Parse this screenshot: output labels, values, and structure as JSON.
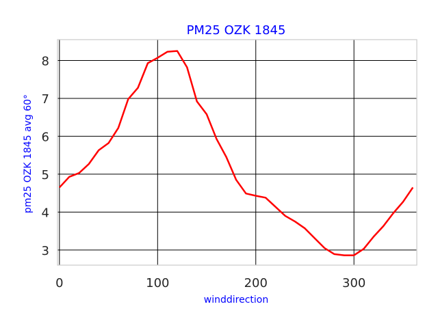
{
  "chart_data": {
    "type": "line",
    "title": "PM25 OZK 1845",
    "xlabel": "winddirection",
    "ylabel": "pm25 OZK 1845 avg 60°",
    "xlim": [
      -2,
      364
    ],
    "ylim": [
      2.6,
      8.55
    ],
    "xticks": [
      0,
      100,
      200,
      300
    ],
    "yticks": [
      3,
      4,
      5,
      6,
      7,
      8
    ],
    "grid": true,
    "colors": {
      "line": "#ff0000",
      "labels": "#0000ff",
      "grid": "#000000",
      "frame": "#cccccc",
      "ticks": "#262626"
    },
    "series": [
      {
        "x": [
          0,
          10,
          20,
          30,
          40,
          50,
          60,
          70,
          80,
          90,
          100,
          110,
          120,
          130,
          140,
          150,
          160,
          170,
          180,
          190,
          200,
          210,
          220,
          230,
          240,
          250,
          260,
          270,
          280,
          290,
          300,
          310,
          320,
          330,
          340,
          350,
          360
        ],
        "values": [
          4.65,
          4.93,
          5.03,
          5.27,
          5.63,
          5.82,
          6.22,
          6.98,
          7.28,
          7.93,
          8.07,
          8.23,
          8.25,
          7.82,
          6.92,
          6.58,
          5.93,
          5.45,
          4.85,
          4.49,
          4.43,
          4.38,
          4.14,
          3.9,
          3.75,
          3.57,
          3.31,
          3.05,
          2.89,
          2.86,
          2.86,
          3.03,
          3.35,
          3.63,
          3.97,
          4.27,
          4.65
        ]
      }
    ]
  }
}
